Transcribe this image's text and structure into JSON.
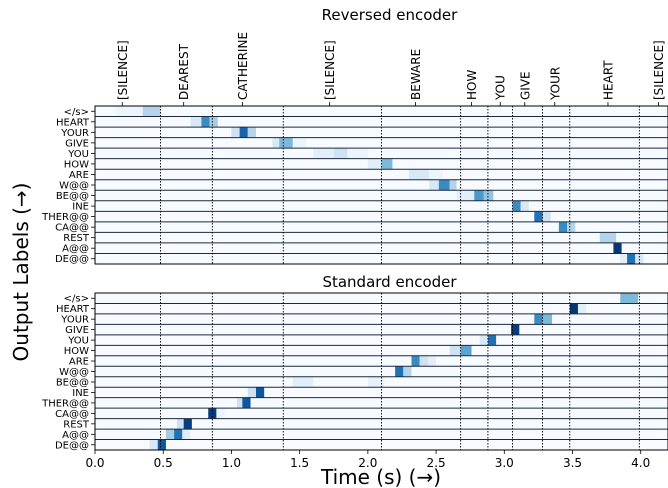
{
  "figure": {
    "ylabel": "Output Labels (→)",
    "xlabel": "Time (s) (→)"
  },
  "chart_data": [
    {
      "type": "heatmap",
      "title": "Reversed encoder",
      "xlim": [
        0.0,
        4.2
      ],
      "xticks": [
        "0.0",
        "0.5",
        "1.0",
        "1.5",
        "2.0",
        "2.5",
        "3.0",
        "3.5",
        "4.0"
      ],
      "rows": [
        "</s>",
        "HEART",
        "YOUR",
        "GIVE",
        "YOU",
        "HOW",
        "ARE",
        "W@@",
        "BE@@",
        "INE",
        "THER@@",
        "CA@@",
        "REST",
        "A@@",
        "DE@@"
      ],
      "word_labels": [
        {
          "label": "[SILENCE]",
          "time": 0.2
        },
        {
          "label": "DEAREST",
          "time": 0.65
        },
        {
          "label": "CATHERINE",
          "time": 1.08
        },
        {
          "label": "[SILENCE]",
          "time": 1.72
        },
        {
          "label": "BEWARE",
          "time": 2.35
        },
        {
          "label": "HOW",
          "time": 2.76
        },
        {
          "label": "YOU",
          "time": 2.97
        },
        {
          "label": "GIVE",
          "time": 3.15
        },
        {
          "label": "YOUR",
          "time": 3.37
        },
        {
          "label": "HEART",
          "time": 3.76
        },
        {
          "label": "[SILENCE]",
          "time": 4.13
        }
      ],
      "boundaries": [
        0.0,
        0.48,
        0.86,
        1.38,
        2.1,
        2.68,
        2.88,
        3.06,
        3.28,
        3.48,
        3.99,
        4.2
      ],
      "cells": [
        {
          "row": 0,
          "t0": 0.15,
          "t1": 0.35,
          "v": 0.05
        },
        {
          "row": 0,
          "t0": 0.35,
          "t1": 0.48,
          "v": 0.3
        },
        {
          "row": 1,
          "t0": 0.7,
          "t1": 0.78,
          "v": 0.15
        },
        {
          "row": 1,
          "t0": 0.78,
          "t1": 0.84,
          "v": 0.65
        },
        {
          "row": 1,
          "t0": 0.84,
          "t1": 0.9,
          "v": 0.35
        },
        {
          "row": 2,
          "t0": 1.0,
          "t1": 1.06,
          "v": 0.2
        },
        {
          "row": 2,
          "t0": 1.06,
          "t1": 1.12,
          "v": 0.8
        },
        {
          "row": 2,
          "t0": 1.12,
          "t1": 1.18,
          "v": 0.3
        },
        {
          "row": 3,
          "t0": 1.3,
          "t1": 1.35,
          "v": 0.15
        },
        {
          "row": 3,
          "t0": 1.35,
          "t1": 1.45,
          "v": 0.45
        },
        {
          "row": 3,
          "t0": 1.45,
          "t1": 1.55,
          "v": 0.05
        },
        {
          "row": 4,
          "t0": 1.6,
          "t1": 1.75,
          "v": 0.1
        },
        {
          "row": 4,
          "t0": 1.75,
          "t1": 1.85,
          "v": 0.2
        },
        {
          "row": 4,
          "t0": 1.85,
          "t1": 2.0,
          "v": 0.05
        },
        {
          "row": 5,
          "t0": 2.0,
          "t1": 2.1,
          "v": 0.1
        },
        {
          "row": 5,
          "t0": 2.1,
          "t1": 2.18,
          "v": 0.45
        },
        {
          "row": 6,
          "t0": 2.3,
          "t1": 2.45,
          "v": 0.15
        },
        {
          "row": 6,
          "t0": 2.45,
          "t1": 2.55,
          "v": 0.05
        },
        {
          "row": 7,
          "t0": 2.45,
          "t1": 2.52,
          "v": 0.15
        },
        {
          "row": 7,
          "t0": 2.52,
          "t1": 2.6,
          "v": 0.65
        },
        {
          "row": 7,
          "t0": 2.6,
          "t1": 2.65,
          "v": 0.3
        },
        {
          "row": 8,
          "t0": 2.65,
          "t1": 2.78,
          "v": 0.1
        },
        {
          "row": 8,
          "t0": 2.78,
          "t1": 2.85,
          "v": 0.6
        },
        {
          "row": 8,
          "t0": 2.85,
          "t1": 2.92,
          "v": 0.4
        },
        {
          "row": 9,
          "t0": 3.06,
          "t1": 3.12,
          "v": 0.65
        },
        {
          "row": 9,
          "t0": 3.12,
          "t1": 3.18,
          "v": 0.15
        },
        {
          "row": 10,
          "t0": 3.22,
          "t1": 3.28,
          "v": 0.75
        },
        {
          "row": 10,
          "t0": 3.28,
          "t1": 3.34,
          "v": 0.2
        },
        {
          "row": 11,
          "t0": 3.4,
          "t1": 3.46,
          "v": 0.65
        },
        {
          "row": 11,
          "t0": 3.46,
          "t1": 3.52,
          "v": 0.3
        },
        {
          "row": 12,
          "t0": 3.7,
          "t1": 3.82,
          "v": 0.3
        },
        {
          "row": 13,
          "t0": 3.8,
          "t1": 3.86,
          "v": 0.98
        },
        {
          "row": 14,
          "t0": 3.85,
          "t1": 3.9,
          "v": 0.1
        },
        {
          "row": 14,
          "t0": 3.9,
          "t1": 3.96,
          "v": 0.75
        },
        {
          "row": 14,
          "t0": 3.96,
          "t1": 4.02,
          "v": 0.15
        }
      ]
    },
    {
      "type": "heatmap",
      "title": "Standard encoder",
      "xlim": [
        0.0,
        4.2
      ],
      "xticks": [
        "0.0",
        "0.5",
        "1.0",
        "1.5",
        "2.0",
        "2.5",
        "3.0",
        "3.5",
        "4.0"
      ],
      "rows": [
        "</s>",
        "HEART",
        "YOUR",
        "GIVE",
        "YOU",
        "HOW",
        "ARE",
        "W@@",
        "BE@@",
        "INE",
        "THER@@",
        "CA@@",
        "REST",
        "A@@",
        "DE@@"
      ],
      "boundaries": [
        0.0,
        0.48,
        0.86,
        1.38,
        2.1,
        2.68,
        2.88,
        3.06,
        3.28,
        3.48,
        3.99,
        4.2
      ],
      "cells": [
        {
          "row": 0,
          "t0": 3.85,
          "t1": 3.98,
          "v": 0.45
        },
        {
          "row": 1,
          "t0": 3.48,
          "t1": 3.54,
          "v": 0.98
        },
        {
          "row": 1,
          "t0": 3.54,
          "t1": 3.6,
          "v": 0.1
        },
        {
          "row": 2,
          "t0": 3.22,
          "t1": 3.28,
          "v": 0.65
        },
        {
          "row": 2,
          "t0": 3.28,
          "t1": 3.35,
          "v": 0.45
        },
        {
          "row": 3,
          "t0": 3.05,
          "t1": 3.11,
          "v": 0.95
        },
        {
          "row": 4,
          "t0": 2.82,
          "t1": 2.88,
          "v": 0.15
        },
        {
          "row": 4,
          "t0": 2.88,
          "t1": 2.94,
          "v": 0.75
        },
        {
          "row": 5,
          "t0": 2.6,
          "t1": 2.68,
          "v": 0.2
        },
        {
          "row": 5,
          "t0": 2.68,
          "t1": 2.76,
          "v": 0.55
        },
        {
          "row": 6,
          "t0": 2.32,
          "t1": 2.38,
          "v": 0.65
        },
        {
          "row": 6,
          "t0": 2.38,
          "t1": 2.44,
          "v": 0.2
        },
        {
          "row": 6,
          "t0": 2.44,
          "t1": 2.5,
          "v": 0.1
        },
        {
          "row": 7,
          "t0": 2.2,
          "t1": 2.26,
          "v": 0.75
        },
        {
          "row": 7,
          "t0": 2.26,
          "t1": 2.32,
          "v": 0.3
        },
        {
          "row": 8,
          "t0": 1.45,
          "t1": 1.6,
          "v": 0.1
        },
        {
          "row": 8,
          "t0": 2.0,
          "t1": 2.12,
          "v": 0.08
        },
        {
          "row": 9,
          "t0": 1.12,
          "t1": 1.18,
          "v": 0.2
        },
        {
          "row": 9,
          "t0": 1.18,
          "t1": 1.24,
          "v": 0.85
        },
        {
          "row": 10,
          "t0": 1.04,
          "t1": 1.08,
          "v": 0.2
        },
        {
          "row": 10,
          "t0": 1.08,
          "t1": 1.14,
          "v": 0.85
        },
        {
          "row": 11,
          "t0": 0.83,
          "t1": 0.89,
          "v": 0.95
        },
        {
          "row": 11,
          "t0": 0.89,
          "t1": 0.95,
          "v": 0.05
        },
        {
          "row": 12,
          "t0": 0.6,
          "t1": 0.65,
          "v": 0.2
        },
        {
          "row": 12,
          "t0": 0.65,
          "t1": 0.71,
          "v": 0.95
        },
        {
          "row": 13,
          "t0": 0.52,
          "t1": 0.58,
          "v": 0.35
        },
        {
          "row": 13,
          "t0": 0.58,
          "t1": 0.64,
          "v": 0.75
        },
        {
          "row": 13,
          "t0": 0.64,
          "t1": 0.7,
          "v": 0.1
        },
        {
          "row": 14,
          "t0": 0.4,
          "t1": 0.46,
          "v": 0.15
        },
        {
          "row": 14,
          "t0": 0.46,
          "t1": 0.52,
          "v": 0.85
        }
      ]
    }
  ]
}
